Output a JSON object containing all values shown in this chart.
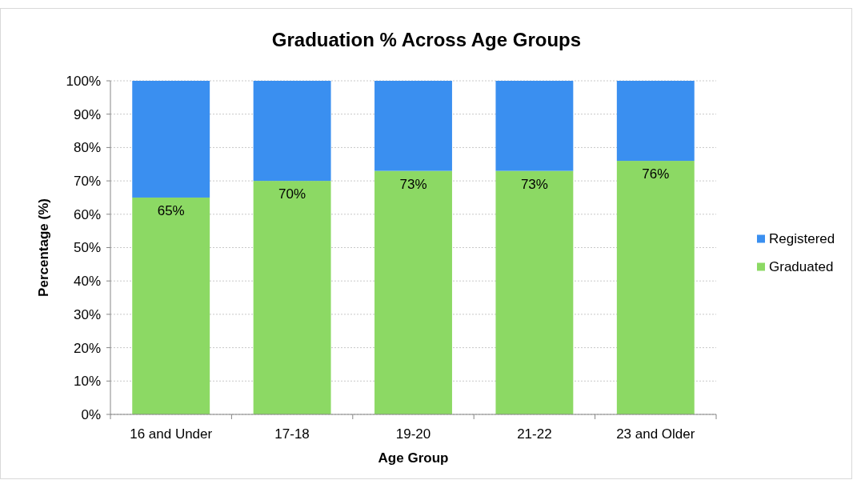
{
  "chart_data": {
    "type": "bar",
    "title": "Graduation % Across Age Groups",
    "xlabel": "Age Group",
    "ylabel": "Percentage (%)",
    "categories": [
      "16 and Under",
      "17-18",
      "19-20",
      "21-22",
      "23 and Older"
    ],
    "stacked": true,
    "series": [
      {
        "name": "Graduated",
        "color": "#8cd964",
        "values": [
          65,
          70,
          73,
          73,
          76
        ],
        "value_labels": [
          "65%",
          "70%",
          "73%",
          "73%",
          "76%"
        ]
      },
      {
        "name": "Registered",
        "color": "#3a8ff0",
        "values": [
          35,
          30,
          27,
          27,
          24
        ]
      }
    ],
    "ylim": [
      0,
      100
    ],
    "yticks": [
      {
        "value": 0,
        "label": "0%"
      },
      {
        "value": 10,
        "label": "10%"
      },
      {
        "value": 20,
        "label": "20%"
      },
      {
        "value": 30,
        "label": "30%"
      },
      {
        "value": 40,
        "label": "40%"
      },
      {
        "value": 50,
        "label": "50%"
      },
      {
        "value": 60,
        "label": "60%"
      },
      {
        "value": 70,
        "label": "70%"
      },
      {
        "value": 80,
        "label": "80%"
      },
      {
        "value": 90,
        "label": "90%"
      },
      {
        "value": 100,
        "label": "100%"
      }
    ],
    "grid": "y",
    "legend": "right"
  }
}
